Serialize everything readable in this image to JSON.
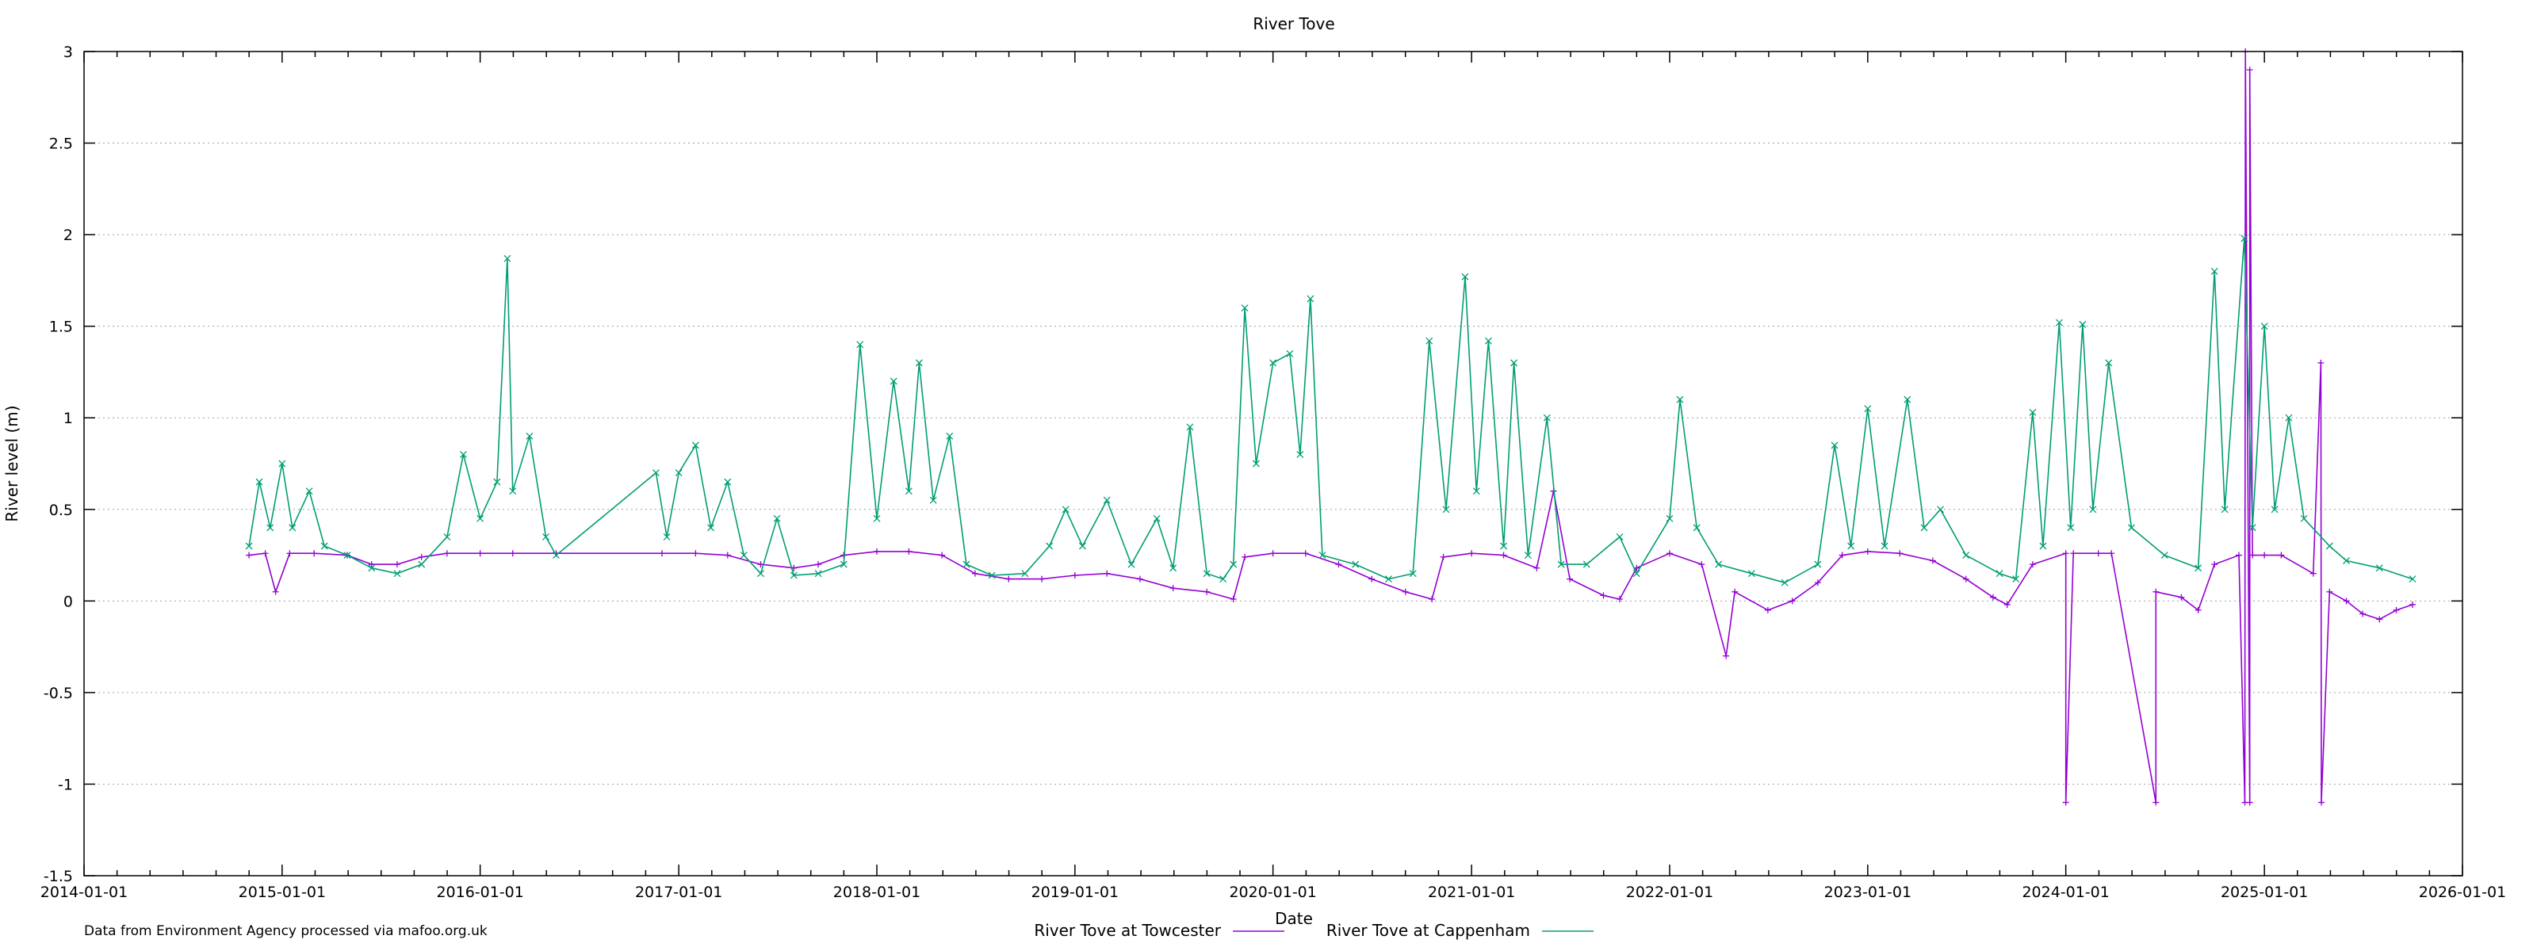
{
  "chart_data": {
    "type": "line",
    "title": "River Tove",
    "xlabel": "Date",
    "ylabel": "River level (m)",
    "xlim": [
      "2014-01-01",
      "2026-01-01"
    ],
    "ylim": [
      -1.5,
      3
    ],
    "x_ticks": [
      "2014-01-01",
      "2015-01-01",
      "2016-01-01",
      "2017-01-01",
      "2018-01-01",
      "2019-01-01",
      "2020-01-01",
      "2021-01-01",
      "2022-01-01",
      "2023-01-01",
      "2024-01-01",
      "2025-01-01",
      "2026-01-01"
    ],
    "y_ticks": [
      "3",
      "2.5",
      "2",
      "1.5",
      "1",
      "0.5",
      "0",
      "-0.5",
      "-1",
      "-1.5"
    ],
    "grid": true,
    "legend_position": "bottom-center",
    "source_note": "Data from Environment Agency processed via mafoo.org.uk",
    "series": [
      {
        "name": "River Tove at Towcester",
        "color": "#9400d3",
        "marker": "plus",
        "points": [
          [
            "2014-11-01",
            0.25
          ],
          [
            "2014-12-01",
            0.26
          ],
          [
            "2014-12-20",
            0.05
          ],
          [
            "2015-01-15",
            0.26
          ],
          [
            "2015-03-01",
            0.26
          ],
          [
            "2015-05-01",
            0.25
          ],
          [
            "2015-06-15",
            0.2
          ],
          [
            "2015-08-01",
            0.2
          ],
          [
            "2015-09-15",
            0.24
          ],
          [
            "2015-11-01",
            0.26
          ],
          [
            "2016-01-01",
            0.26
          ],
          [
            "2016-03-01",
            0.26
          ],
          [
            "2016-05-20",
            0.26
          ],
          [
            "2016-12-01",
            0.26
          ],
          [
            "2017-02-01",
            0.26
          ],
          [
            "2017-04-01",
            0.25
          ],
          [
            "2017-06-01",
            0.2
          ],
          [
            "2017-08-01",
            0.18
          ],
          [
            "2017-09-15",
            0.2
          ],
          [
            "2017-11-01",
            0.25
          ],
          [
            "2018-01-01",
            0.27
          ],
          [
            "2018-03-01",
            0.27
          ],
          [
            "2018-05-01",
            0.25
          ],
          [
            "2018-07-01",
            0.15
          ],
          [
            "2018-09-01",
            0.12
          ],
          [
            "2018-11-01",
            0.12
          ],
          [
            "2019-01-01",
            0.14
          ],
          [
            "2019-03-01",
            0.15
          ],
          [
            "2019-05-01",
            0.12
          ],
          [
            "2019-07-01",
            0.07
          ],
          [
            "2019-09-01",
            0.05
          ],
          [
            "2019-10-20",
            0.01
          ],
          [
            "2019-11-10",
            0.24
          ],
          [
            "2020-01-01",
            0.26
          ],
          [
            "2020-03-01",
            0.26
          ],
          [
            "2020-05-01",
            0.2
          ],
          [
            "2020-07-01",
            0.12
          ],
          [
            "2020-09-01",
            0.05
          ],
          [
            "2020-10-20",
            0.01
          ],
          [
            "2020-11-10",
            0.24
          ],
          [
            "2021-01-01",
            0.26
          ],
          [
            "2021-03-01",
            0.25
          ],
          [
            "2021-05-01",
            0.18
          ],
          [
            "2021-06-01",
            0.6
          ],
          [
            "2021-07-01",
            0.12
          ],
          [
            "2021-09-01",
            0.03
          ],
          [
            "2021-10-01",
            0.01
          ],
          [
            "2021-11-01",
            0.18
          ],
          [
            "2022-01-01",
            0.26
          ],
          [
            "2022-03-01",
            0.2
          ],
          [
            "2022-04-15",
            -0.3
          ],
          [
            "2022-05-01",
            0.05
          ],
          [
            "2022-07-01",
            -0.05
          ],
          [
            "2022-08-15",
            0.0
          ],
          [
            "2022-10-01",
            0.1
          ],
          [
            "2022-11-15",
            0.25
          ],
          [
            "2023-01-01",
            0.27
          ],
          [
            "2023-03-01",
            0.26
          ],
          [
            "2023-05-01",
            0.22
          ],
          [
            "2023-07-01",
            0.12
          ],
          [
            "2023-08-20",
            0.02
          ],
          [
            "2023-09-15",
            -0.02
          ],
          [
            "2023-11-01",
            0.2
          ],
          [
            "2024-01-01",
            0.26
          ],
          [
            "2024-01-01",
            -1.1
          ],
          [
            "2024-01-15",
            0.26
          ],
          [
            "2024-03-01",
            0.26
          ],
          [
            "2024-03-25",
            0.26
          ],
          [
            "2024-06-15",
            -1.1
          ],
          [
            "2024-06-15",
            0.05
          ],
          [
            "2024-08-01",
            0.02
          ],
          [
            "2024-09-01",
            -0.05
          ],
          [
            "2024-10-01",
            0.2
          ],
          [
            "2024-11-15",
            0.25
          ],
          [
            "2024-11-26",
            -1.1
          ],
          [
            "2024-11-27",
            3.0
          ],
          [
            "2024-12-05",
            -1.1
          ],
          [
            "2024-12-05",
            2.9
          ],
          [
            "2024-12-10",
            0.25
          ],
          [
            "2025-01-01",
            0.25
          ],
          [
            "2025-02-01",
            0.25
          ],
          [
            "2025-04-01",
            0.15
          ],
          [
            "2025-04-15",
            1.3
          ],
          [
            "2025-04-16",
            -1.1
          ],
          [
            "2025-05-01",
            0.05
          ],
          [
            "2025-06-01",
            0.0
          ],
          [
            "2025-07-01",
            -0.07
          ],
          [
            "2025-08-01",
            -0.1
          ],
          [
            "2025-09-01",
            -0.05
          ],
          [
            "2025-10-01",
            -0.02
          ]
        ]
      },
      {
        "name": "River Tove at Cappenham",
        "color": "#009e73",
        "marker": "cross",
        "points": [
          [
            "2014-11-01",
            0.3
          ],
          [
            "2014-11-20",
            0.65
          ],
          [
            "2014-12-10",
            0.4
          ],
          [
            "2015-01-01",
            0.75
          ],
          [
            "2015-01-20",
            0.4
          ],
          [
            "2015-02-20",
            0.6
          ],
          [
            "2015-03-20",
            0.3
          ],
          [
            "2015-05-01",
            0.25
          ],
          [
            "2015-06-15",
            0.18
          ],
          [
            "2015-08-01",
            0.15
          ],
          [
            "2015-09-15",
            0.2
          ],
          [
            "2015-11-01",
            0.35
          ],
          [
            "2015-12-01",
            0.8
          ],
          [
            "2016-01-01",
            0.45
          ],
          [
            "2016-02-01",
            0.65
          ],
          [
            "2016-02-20",
            1.87
          ],
          [
            "2016-03-01",
            0.6
          ],
          [
            "2016-04-01",
            0.9
          ],
          [
            "2016-05-01",
            0.35
          ],
          [
            "2016-05-20",
            0.25
          ],
          [
            "2016-11-20",
            0.7
          ],
          [
            "2016-12-10",
            0.35
          ],
          [
            "2017-01-01",
            0.7
          ],
          [
            "2017-02-01",
            0.85
          ],
          [
            "2017-03-01",
            0.4
          ],
          [
            "2017-04-01",
            0.65
          ],
          [
            "2017-05-01",
            0.25
          ],
          [
            "2017-06-01",
            0.15
          ],
          [
            "2017-07-01",
            0.45
          ],
          [
            "2017-08-01",
            0.14
          ],
          [
            "2017-09-15",
            0.15
          ],
          [
            "2017-11-01",
            0.2
          ],
          [
            "2017-12-01",
            1.4
          ],
          [
            "2018-01-01",
            0.45
          ],
          [
            "2018-02-01",
            1.2
          ],
          [
            "2018-03-01",
            0.6
          ],
          [
            "2018-03-20",
            1.3
          ],
          [
            "2018-04-15",
            0.55
          ],
          [
            "2018-05-15",
            0.9
          ],
          [
            "2018-06-15",
            0.2
          ],
          [
            "2018-08-01",
            0.14
          ],
          [
            "2018-10-01",
            0.15
          ],
          [
            "2018-11-15",
            0.3
          ],
          [
            "2018-12-15",
            0.5
          ],
          [
            "2019-01-15",
            0.3
          ],
          [
            "2019-03-01",
            0.55
          ],
          [
            "2019-04-15",
            0.2
          ],
          [
            "2019-06-01",
            0.45
          ],
          [
            "2019-07-01",
            0.18
          ],
          [
            "2019-08-01",
            0.95
          ],
          [
            "2019-09-01",
            0.15
          ],
          [
            "2019-10-01",
            0.12
          ],
          [
            "2019-10-20",
            0.2
          ],
          [
            "2019-11-10",
            1.6
          ],
          [
            "2019-12-01",
            0.75
          ],
          [
            "2020-01-01",
            1.3
          ],
          [
            "2020-02-01",
            1.35
          ],
          [
            "2020-02-20",
            0.8
          ],
          [
            "2020-03-10",
            1.65
          ],
          [
            "2020-04-01",
            0.25
          ],
          [
            "2020-06-01",
            0.2
          ],
          [
            "2020-08-01",
            0.12
          ],
          [
            "2020-09-15",
            0.15
          ],
          [
            "2020-10-15",
            1.42
          ],
          [
            "2020-11-15",
            0.5
          ],
          [
            "2020-12-20",
            1.77
          ],
          [
            "2021-01-10",
            0.6
          ],
          [
            "2021-02-01",
            1.42
          ],
          [
            "2021-03-01",
            0.3
          ],
          [
            "2021-03-20",
            1.3
          ],
          [
            "2021-04-15",
            0.25
          ],
          [
            "2021-05-20",
            1.0
          ],
          [
            "2021-06-15",
            0.2
          ],
          [
            "2021-08-01",
            0.2
          ],
          [
            "2021-10-01",
            0.35
          ],
          [
            "2021-11-01",
            0.15
          ],
          [
            "2022-01-01",
            0.45
          ],
          [
            "2022-01-20",
            1.1
          ],
          [
            "2022-02-20",
            0.4
          ],
          [
            "2022-04-01",
            0.2
          ],
          [
            "2022-06-01",
            0.15
          ],
          [
            "2022-08-01",
            0.1
          ],
          [
            "2022-10-01",
            0.2
          ],
          [
            "2022-11-01",
            0.85
          ],
          [
            "2022-12-01",
            0.3
          ],
          [
            "2023-01-01",
            1.05
          ],
          [
            "2023-02-01",
            0.3
          ],
          [
            "2023-03-15",
            1.1
          ],
          [
            "2023-04-15",
            0.4
          ],
          [
            "2023-05-15",
            0.5
          ],
          [
            "2023-07-01",
            0.25
          ],
          [
            "2023-09-01",
            0.15
          ],
          [
            "2023-10-01",
            0.12
          ],
          [
            "2023-11-01",
            1.03
          ],
          [
            "2023-11-20",
            0.3
          ],
          [
            "2023-12-20",
            1.52
          ],
          [
            "2024-01-10",
            0.4
          ],
          [
            "2024-02-01",
            1.51
          ],
          [
            "2024-02-20",
            0.5
          ],
          [
            "2024-03-20",
            1.3
          ],
          [
            "2024-05-01",
            0.4
          ],
          [
            "2024-07-01",
            0.25
          ],
          [
            "2024-09-01",
            0.18
          ],
          [
            "2024-10-01",
            1.8
          ],
          [
            "2024-10-20",
            0.5
          ],
          [
            "2024-11-25",
            1.98
          ],
          [
            "2024-12-10",
            0.4
          ],
          [
            "2025-01-01",
            1.5
          ],
          [
            "2025-01-20",
            0.5
          ],
          [
            "2025-02-15",
            1.0
          ],
          [
            "2025-03-15",
            0.45
          ],
          [
            "2025-05-01",
            0.3
          ],
          [
            "2025-06-01",
            0.22
          ],
          [
            "2025-08-01",
            0.18
          ],
          [
            "2025-10-01",
            0.12
          ]
        ]
      }
    ]
  }
}
